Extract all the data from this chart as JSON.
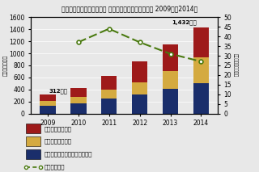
{
  "title": "国内クラウドサービス市場 セグメント別売上額予測， 2009年～2014年",
  "years": [
    "2009",
    "2010",
    "2011",
    "2012",
    "2013",
    "2014"
  ],
  "infra": [
    130,
    175,
    250,
    310,
    410,
    510
  ],
  "platform": [
    75,
    100,
    150,
    210,
    290,
    430
  ],
  "app": [
    107,
    145,
    220,
    340,
    450,
    490
  ],
  "growth_x": [
    1,
    2,
    3,
    4,
    5
  ],
  "growth_y": [
    37,
    44,
    37,
    31,
    27
  ],
  "color_app": "#9e1a1a",
  "color_platform": "#d4aa40",
  "color_infra": "#1a2e6b",
  "color_line": "#4a7a10",
  "annotation_312": "312億円",
  "annotation_1432": "1,432億円",
  "ylabel_left": "売上額（億円）",
  "ylabel_right": "前年比成長率（％）",
  "legend_app": "アプリケーション",
  "legend_platform": "プラットフォーム",
  "legend_infra": "システムインフラストラクチャ",
  "legend_line": "前年比成長率",
  "ylim_left": [
    0,
    1600
  ],
  "ylim_right": [
    0,
    50
  ],
  "yticks_left": [
    0,
    200,
    400,
    600,
    800,
    1000,
    1200,
    1400,
    1600
  ],
  "yticks_right": [
    0,
    5,
    10,
    15,
    20,
    25,
    30,
    35,
    40,
    45,
    50
  ],
  "bg_color": "#e8e8e8"
}
